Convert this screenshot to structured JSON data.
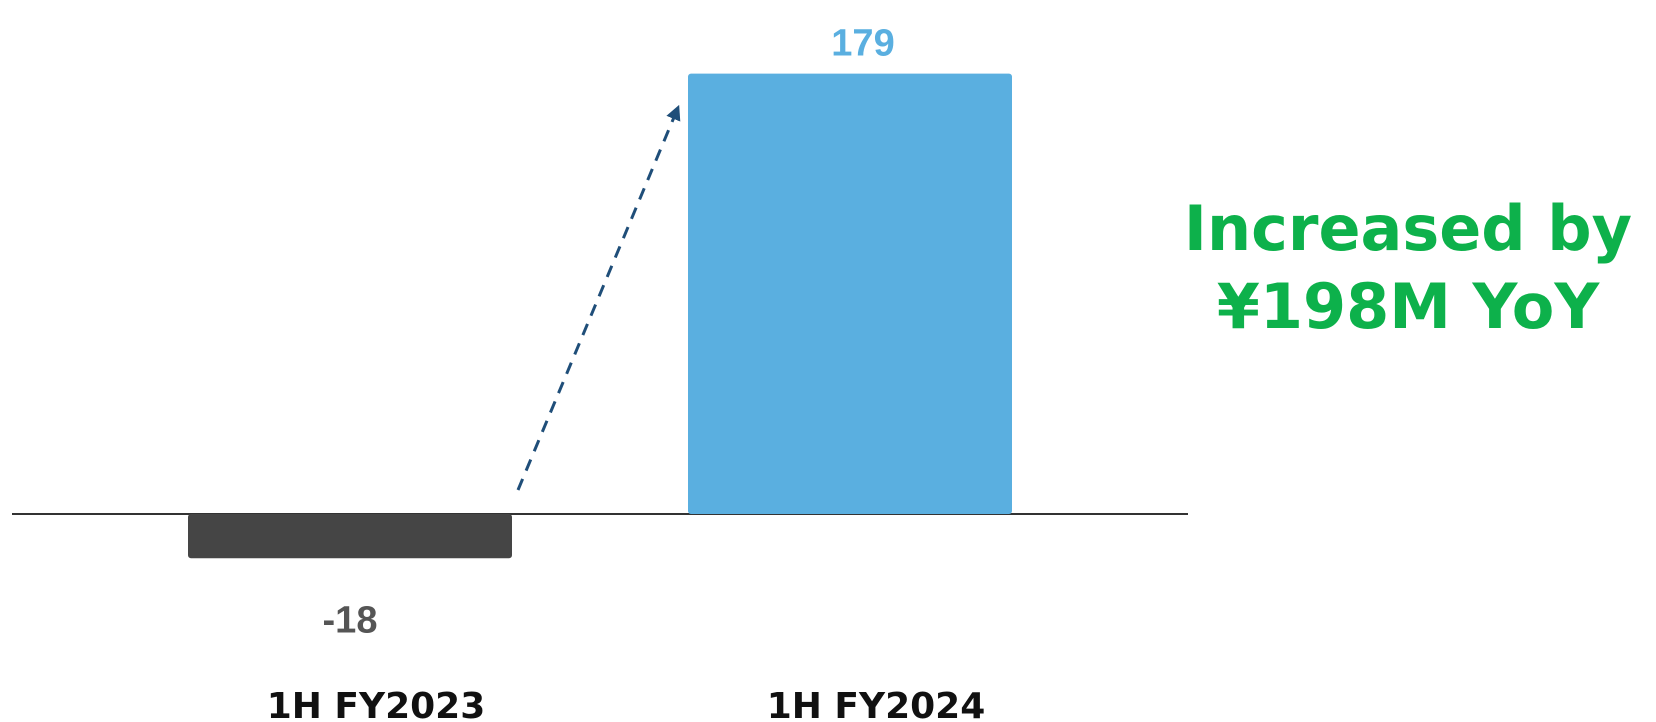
{
  "chart_data": {
    "type": "bar",
    "title": "",
    "xlabel": "",
    "ylabel": "",
    "categories": [
      "1H FY2023",
      "1H FY2024"
    ],
    "values": [
      -18,
      179
    ],
    "value_labels": [
      "-18",
      "179"
    ],
    "ylim": [
      -18,
      179
    ],
    "grid": false,
    "legend": "none",
    "bar_colors": [
      "#454545",
      "#5aafe0"
    ],
    "label_colors": [
      "#555555",
      "#5aafe0"
    ],
    "axis_color": "#333333",
    "arrow": {
      "style": "dashed",
      "color": "#1f4e79",
      "from": "1H FY2023",
      "to": "1H FY2024"
    }
  },
  "callout": {
    "line1": "Increased by",
    "line2": "¥198M YoY",
    "color": "#0db14b"
  }
}
